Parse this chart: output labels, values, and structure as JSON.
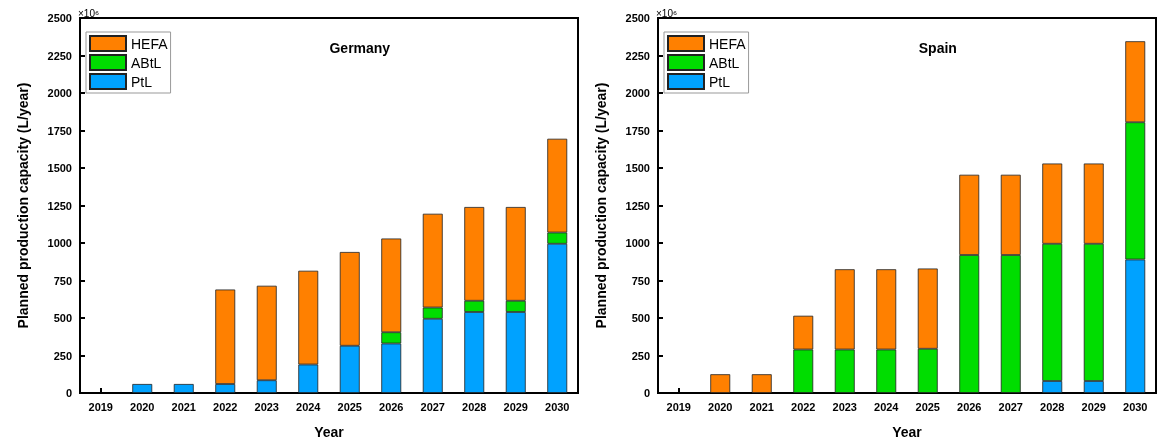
{
  "chart_data": [
    {
      "type": "bar",
      "stacked": true,
      "title": "Germany",
      "xlabel": "Year",
      "ylabel": "Planned production capacity (L/year)",
      "annotations": [
        "×10⁶"
      ],
      "categories": [
        "2019",
        "2020",
        "2021",
        "2022",
        "2023",
        "2024",
        "2025",
        "2026",
        "2027",
        "2028",
        "2029",
        "2030"
      ],
      "ylim": [
        0,
        2500
      ],
      "yticks": [
        0,
        250,
        500,
        750,
        1000,
        1250,
        1500,
        1750,
        2000,
        2250,
        2500
      ],
      "grid": false,
      "legend": "top left",
      "series": [
        {
          "name": "PtL",
          "color": "#00a2ff",
          "values": [
            0,
            60,
            60,
            60,
            85,
            190,
            315,
            330,
            495,
            540,
            540,
            995
          ]
        },
        {
          "name": "ABtL",
          "color": "#00dd00",
          "values": [
            0,
            0,
            0,
            0,
            0,
            0,
            0,
            75,
            75,
            75,
            75,
            75
          ]
        },
        {
          "name": "HEFA",
          "color": "#ff8000",
          "values": [
            0,
            0,
            0,
            630,
            630,
            625,
            625,
            625,
            625,
            625,
            625,
            625
          ]
        }
      ]
    },
    {
      "type": "bar",
      "stacked": true,
      "title": "Spain",
      "xlabel": "Year",
      "ylabel": "Planned production capacity (L/year)",
      "annotations": [
        "×10⁶"
      ],
      "categories": [
        "2019",
        "2020",
        "2021",
        "2022",
        "2023",
        "2024",
        "2025",
        "2026",
        "2027",
        "2028",
        "2029",
        "2030"
      ],
      "ylim": [
        0,
        2500
      ],
      "yticks": [
        0,
        250,
        500,
        750,
        1000,
        1250,
        1500,
        1750,
        2000,
        2250,
        2500
      ],
      "grid": false,
      "legend": "top left",
      "series": [
        {
          "name": "PtL",
          "color": "#00a2ff",
          "values": [
            0,
            0,
            0,
            0,
            0,
            0,
            0,
            0,
            0,
            80,
            80,
            890
          ]
        },
        {
          "name": "ABtL",
          "color": "#00dd00",
          "values": [
            0,
            0,
            0,
            290,
            290,
            290,
            295,
            920,
            920,
            915,
            915,
            915
          ]
        },
        {
          "name": "HEFA",
          "color": "#ff8000",
          "values": [
            0,
            125,
            125,
            225,
            535,
            535,
            535,
            535,
            535,
            535,
            535,
            540
          ]
        }
      ]
    }
  ]
}
